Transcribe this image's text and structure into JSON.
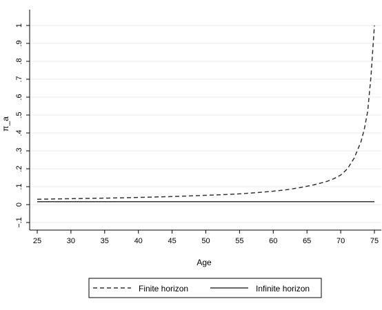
{
  "chart_data": {
    "type": "line",
    "title": "",
    "xlabel": "Age",
    "ylabel": "π_a",
    "xlim": [
      25,
      75
    ],
    "ylim": [
      -0.1,
      1
    ],
    "grid": true,
    "xticks": [
      "25",
      "30",
      "35",
      "40",
      "45",
      "50",
      "55",
      "60",
      "65",
      "70",
      "75"
    ],
    "yticks": [
      "−.1",
      "0",
      ".1",
      ".2",
      ".3",
      ".4",
      ".5",
      ".6",
      ".7",
      ".8",
      ".9",
      "1"
    ],
    "legend": {
      "position": "bottom"
    },
    "series": [
      {
        "name": "Finite horizon",
        "style": "dashed",
        "x": [
          25,
          27,
          30,
          33,
          35,
          38,
          40,
          43,
          45,
          48,
          50,
          53,
          55,
          58,
          60,
          62,
          64,
          66,
          68,
          69,
          70,
          71,
          72,
          73,
          73.5,
          74,
          74.5,
          75
        ],
        "y": [
          0.03,
          0.031,
          0.033,
          0.035,
          0.036,
          0.038,
          0.04,
          0.043,
          0.045,
          0.049,
          0.052,
          0.056,
          0.06,
          0.068,
          0.075,
          0.083,
          0.095,
          0.11,
          0.13,
          0.145,
          0.165,
          0.2,
          0.26,
          0.35,
          0.42,
          0.52,
          0.72,
          1.0
        ]
      },
      {
        "name": "Infinite horizon",
        "style": "solid",
        "x": [
          25,
          75
        ],
        "y": [
          0.016,
          0.016
        ]
      }
    ]
  }
}
